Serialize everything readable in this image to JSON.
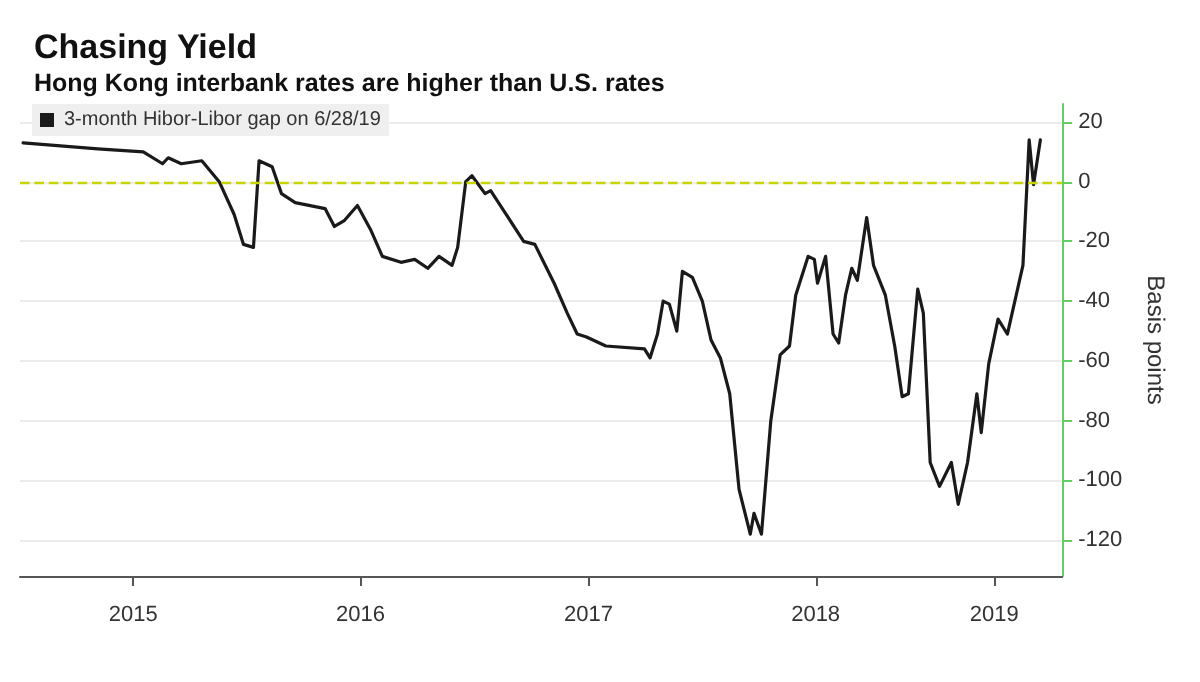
{
  "chart_data": {
    "type": "line",
    "title": "Chasing Yield",
    "subtitle": "Hong Kong interbank rates are higher than U.S. rates",
    "ylabel": "Basis points",
    "x": [
      "2015-01-06",
      "2015-05-06",
      "2015-07-18",
      "2015-08-18",
      "2015-08-27",
      "2015-09-17",
      "2015-10-20",
      "2015-11-17",
      "2015-12-11",
      "2015-12-26",
      "2016-01-11",
      "2016-01-20",
      "2016-02-10",
      "2016-02-25",
      "2016-03-18",
      "2016-05-05",
      "2016-05-20",
      "2016-06-05",
      "2016-06-26",
      "2016-07-17",
      "2016-08-05",
      "2016-09-04",
      "2016-09-26",
      "2016-10-17",
      "2016-11-04",
      "2016-11-25",
      "2016-12-04",
      "2016-12-17",
      "2016-12-27",
      "2017-01-17",
      "2017-01-26",
      "2017-02-17",
      "2017-03-20",
      "2017-04-07",
      "2017-05-08",
      "2017-05-29",
      "2017-06-14",
      "2017-06-29",
      "2017-07-30",
      "2017-09-30",
      "2017-10-09",
      "2017-10-21",
      "2017-10-30",
      "2017-11-09",
      "2017-11-21",
      "2017-11-30",
      "2017-12-16",
      "2018-01-01",
      "2018-01-15",
      "2018-01-30",
      "2018-02-14",
      "2018-03-01",
      "2018-03-19",
      "2018-03-25",
      "2018-04-06",
      "2018-04-21",
      "2018-05-06",
      "2018-05-21",
      "2018-05-31",
      "2018-06-20",
      "2018-06-30",
      "2018-07-05",
      "2018-07-18",
      "2018-07-30",
      "2018-08-08",
      "2018-08-19",
      "2018-08-29",
      "2018-09-07",
      "2018-09-22",
      "2018-10-03",
      "2018-10-22",
      "2018-11-06",
      "2018-11-18",
      "2018-11-28",
      "2018-12-13",
      "2018-12-22",
      "2019-01-02",
      "2019-01-17",
      "2019-02-05",
      "2019-02-16",
      "2019-03-03",
      "2019-03-18",
      "2019-03-25",
      "2019-04-06",
      "2019-04-21",
      "2019-05-06",
      "2019-05-31",
      "2019-06-10",
      "2019-06-17",
      "2019-06-28"
    ],
    "series": [
      {
        "name": "3-month Hibor-Libor gap on 6/28/19",
        "color": "#1a1a1a",
        "values": [
          13,
          11,
          10,
          6,
          8,
          6,
          7,
          0,
          -11,
          -21,
          -22,
          7,
          5,
          -4,
          -7,
          -9,
          -15,
          -13,
          -8,
          -16,
          -25,
          -27,
          -26,
          -29,
          -25,
          -28,
          -22,
          0,
          2,
          -4,
          -3,
          -10,
          -20,
          -21,
          -34,
          -44,
          -51,
          -52,
          -55,
          -56,
          -59,
          -51,
          -40,
          -41,
          -50,
          -30,
          -32,
          -40,
          -53,
          -59,
          -71,
          -103,
          -118,
          -111,
          -118,
          -80,
          -58,
          -55,
          -38,
          -25,
          -26,
          -34,
          -25,
          -51,
          -54,
          -38,
          -29,
          -33,
          -12,
          -28,
          -38,
          -55,
          -72,
          -71,
          -36,
          -44,
          -94,
          -102,
          -94,
          -108,
          -94,
          -71,
          -84,
          -61,
          -46,
          -51,
          -28,
          14,
          -1,
          14
        ]
      }
    ],
    "xlim": [
      "2015-01-01",
      "2019-08-02"
    ],
    "xticks": [
      {
        "value": "2015-07-02",
        "label": "2015"
      },
      {
        "value": "2016-07-01",
        "label": "2016"
      },
      {
        "value": "2017-07-02",
        "label": "2017"
      },
      {
        "value": "2018-07-02",
        "label": "2018"
      },
      {
        "value": "2019-04-15",
        "label": "2019"
      }
    ],
    "ylim": [
      -132,
      26
    ],
    "yticks": [
      -120,
      -100,
      -80,
      -60,
      -40,
      -20,
      0,
      20
    ],
    "ref_lines": [
      {
        "axis": "y",
        "value": 0,
        "label": null,
        "color": "#c8d400",
        "line_style": "dashed"
      }
    ],
    "grid": "y",
    "legend": "top left",
    "marker": "none",
    "line_style": "solid"
  }
}
